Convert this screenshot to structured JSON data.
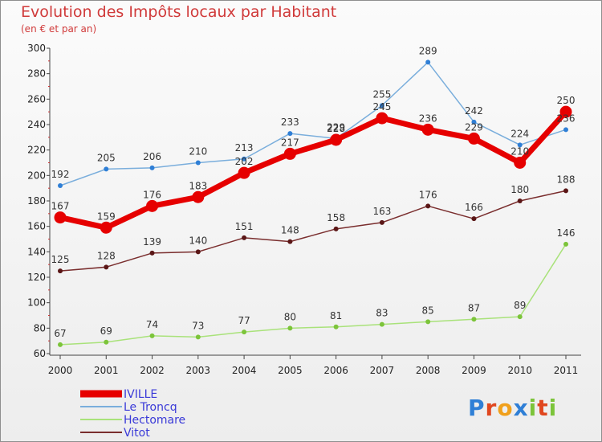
{
  "title": "Evolution des Impôts locaux par Habitant",
  "subtitle": "(en € et par an)",
  "logo": {
    "text": "Proxiti",
    "letter_colors": [
      "#2f7fd6",
      "#e0471f",
      "#f0a01c",
      "#2f7fd6",
      "#7cc43a",
      "#e0471f",
      "#7cc43a"
    ]
  },
  "chart_data": {
    "type": "line",
    "x": [
      "2000",
      "2001",
      "2002",
      "2003",
      "2004",
      "2005",
      "2006",
      "2007",
      "2008",
      "2009",
      "2010",
      "2011"
    ],
    "ylim": [
      60,
      300
    ],
    "yticks": [
      60,
      80,
      100,
      120,
      140,
      160,
      180,
      200,
      220,
      240,
      260,
      280,
      300
    ],
    "grid": false,
    "legend_position": "bottom-left",
    "series": [
      {
        "name": "IVILLE",
        "color": "#e60000",
        "values": [
          167,
          159,
          176,
          183,
          202,
          217,
          228,
          245,
          236,
          229,
          210,
          250
        ]
      },
      {
        "name": "Le Troncq",
        "color": "#7aaedc",
        "marker_color": "#2f7fd6",
        "values": [
          192,
          205,
          206,
          210,
          213,
          233,
          229,
          255,
          289,
          242,
          224,
          236
        ]
      },
      {
        "name": "Hectomare",
        "color": "#a9e27a",
        "marker_color": "#7cc43a",
        "values": [
          67,
          69,
          74,
          73,
          77,
          80,
          81,
          83,
          85,
          87,
          89,
          146
        ]
      },
      {
        "name": "Vitot",
        "color": "#7a2e2e",
        "marker_color": "#5a1616",
        "values": [
          125,
          128,
          139,
          140,
          151,
          148,
          158,
          163,
          176,
          166,
          180,
          188
        ]
      }
    ]
  }
}
